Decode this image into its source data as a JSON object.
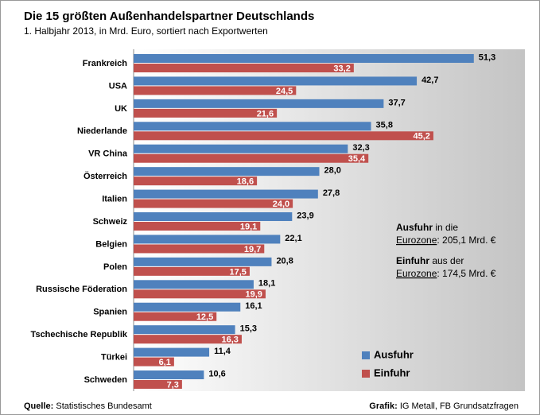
{
  "chart_data": {
    "type": "bar",
    "orientation": "horizontal",
    "title": "Die 15 größten Außenhandelspartner Deutschlands",
    "subtitle": "1. Halbjahr 2013, in Mrd. Euro, sortiert nach Exportwerten",
    "categories": [
      "Frankreich",
      "USA",
      "UK",
      "Niederlande",
      "VR China",
      "Österreich",
      "Italien",
      "Schweiz",
      "Belgien",
      "Polen",
      "Russische Föderation",
      "Spanien",
      "Tschechische Republik",
      "Türkei",
      "Schweden"
    ],
    "series": [
      {
        "name": "Ausfuhr",
        "color": "#4f81bd",
        "values": [
          51.3,
          42.7,
          37.7,
          35.8,
          32.3,
          28.0,
          27.8,
          23.9,
          22.1,
          20.8,
          18.1,
          16.1,
          15.3,
          11.4,
          10.6
        ],
        "value_labels": [
          "51,3",
          "42,7",
          "37,7",
          "35,8",
          "32,3",
          "28,0",
          "27,8",
          "23,9",
          "22,1",
          "20,8",
          "18,1",
          "16,1",
          "15,3",
          "11,4",
          "10,6"
        ]
      },
      {
        "name": "Einfuhr",
        "color": "#c0504d",
        "values": [
          33.2,
          24.5,
          21.6,
          45.2,
          35.4,
          18.6,
          24.0,
          19.1,
          19.7,
          17.5,
          19.9,
          12.5,
          16.3,
          6.1,
          7.3
        ],
        "value_labels": [
          "33,2",
          "24,5",
          "21,6",
          "45,2",
          "35,4",
          "18,6",
          "24,0",
          "19,1",
          "19,7",
          "17,5",
          "19,9",
          "12,5",
          "16,3",
          "6,1",
          "7,3"
        ]
      }
    ],
    "xlim": [
      0,
      59
    ],
    "legend": "lower right",
    "annotations": [
      [
        "Ausfuhr",
        " in die",
        "Eurozone",
        ": 205,1 Mrd. €"
      ],
      [
        "Einfuhr",
        " aus der",
        "Eurozone",
        ": 174,5 Mrd. €"
      ]
    ],
    "source": [
      "Quelle:",
      " Statistisches Bundesamt"
    ],
    "credit": [
      "Grafik:",
      " IG Metall, FB Grundsatzfragen"
    ]
  }
}
